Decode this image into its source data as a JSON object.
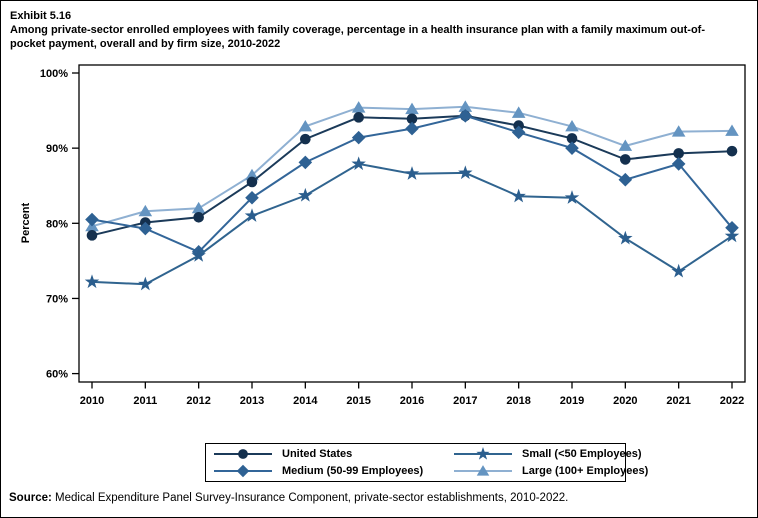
{
  "header": {
    "exhibit_label": "Exhibit 5.16",
    "title": "Among private-sector enrolled employees with family coverage, percentage in a health insurance plan with a family maximum out-of-pocket payment, overall and by firm size, 2010-2022"
  },
  "chart_data": {
    "type": "line",
    "x": [
      "2010",
      "2011",
      "2012",
      "2013",
      "2014",
      "2015",
      "2016",
      "2017",
      "2018",
      "2019",
      "2020",
      "2021",
      "2022"
    ],
    "ylabel": "Percent",
    "ylim": [
      60,
      100
    ],
    "yticks": [
      100,
      90,
      80,
      70,
      60
    ],
    "ytick_labels": [
      "100%",
      "90%",
      "80%",
      "70%",
      "60%"
    ],
    "grid": "off",
    "legend_position": "bottom-center-boxed",
    "series": [
      {
        "name": "United States",
        "marker": "circle",
        "marker_color": "#14304e",
        "line_color": "#1b3a59",
        "values": [
          78.4,
          80.1,
          80.8,
          85.5,
          91.2,
          94.1,
          93.9,
          94.3,
          93.0,
          91.3,
          88.5,
          89.3,
          89.6
        ]
      },
      {
        "name": "Medium (50-99 Employees)",
        "marker": "diamond",
        "marker_color": "#2e6193",
        "line_color": "#336699",
        "values": [
          80.5,
          79.3,
          76.2,
          83.4,
          88.1,
          91.4,
          92.6,
          94.3,
          92.1,
          90.0,
          85.8,
          87.9,
          79.4
        ]
      },
      {
        "name": "Small (<50 Employees)",
        "marker": "star",
        "marker_color": "#2b5e8e",
        "line_color": "#30648f",
        "values": [
          72.2,
          71.9,
          75.7,
          81.0,
          83.7,
          87.9,
          86.6,
          86.7,
          83.6,
          83.4,
          78.0,
          73.6,
          78.3
        ]
      },
      {
        "name": "Large (100+ Employees)",
        "marker": "triangle",
        "marker_color": "#6494c1",
        "line_color": "#8fb0d2",
        "values": [
          79.6,
          81.6,
          82.0,
          86.4,
          92.9,
          95.4,
          95.2,
          95.5,
          94.7,
          92.9,
          90.3,
          92.2,
          92.3
        ]
      }
    ],
    "legend_order": [
      0,
      2,
      1,
      3
    ],
    "draw_order": [
      3,
      0,
      1,
      2
    ]
  },
  "source": {
    "label": "Source:",
    "text": " Medical Expenditure Panel Survey-Insurance Component, private-sector establishments, 2010-2022."
  }
}
